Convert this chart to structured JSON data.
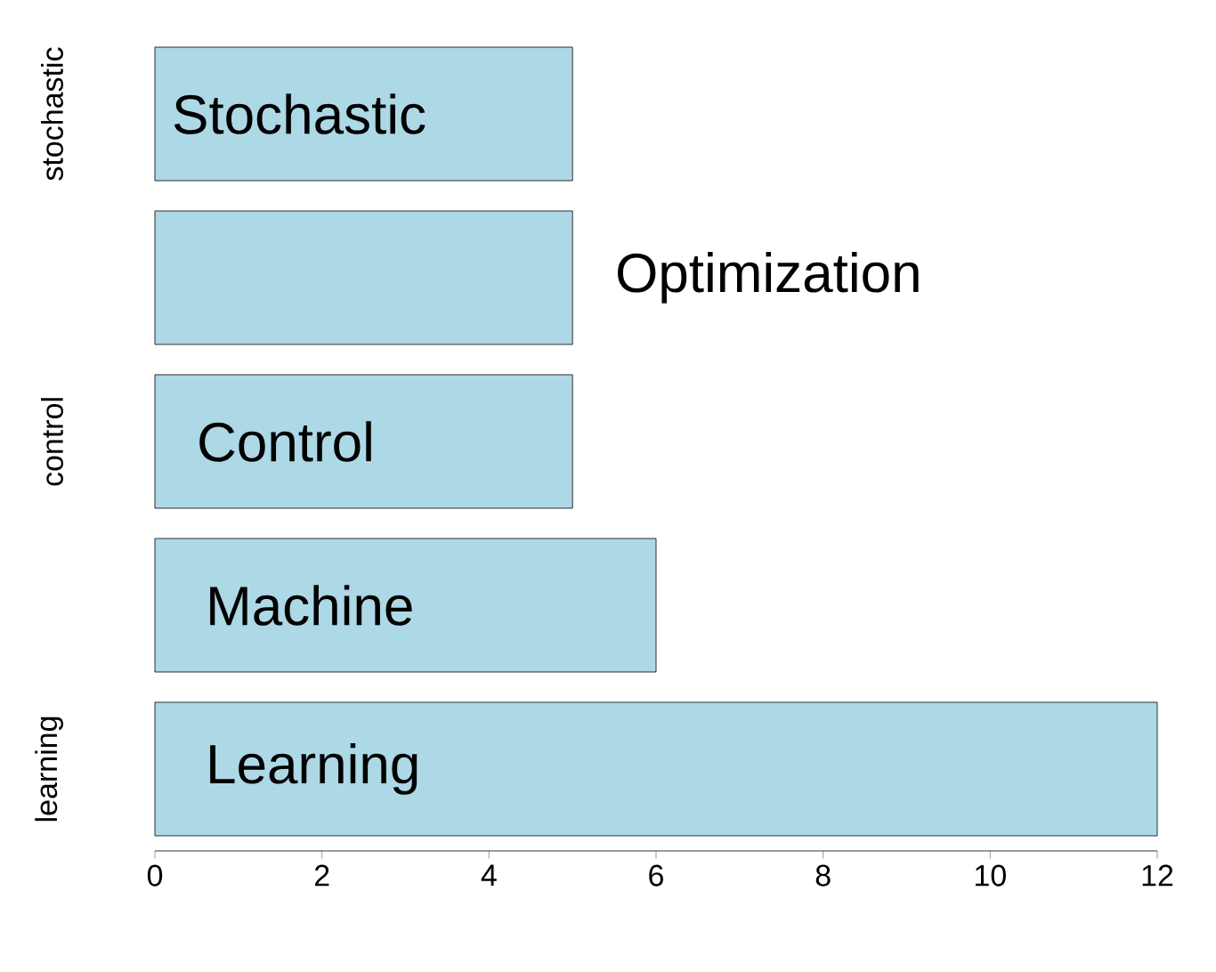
{
  "chart_data": {
    "type": "bar",
    "orientation": "horizontal",
    "categories": [
      "stochastic",
      null,
      "control",
      null,
      "learning"
    ],
    "values": [
      5,
      5,
      5,
      6,
      12
    ],
    "color": "#add8e6",
    "xlim": [
      0,
      12
    ],
    "xticks": [
      0,
      2,
      4,
      6,
      8,
      10,
      12
    ],
    "annotations": [
      "Stochastic",
      "Optimization",
      "Control",
      "Machine",
      "Learning"
    ]
  }
}
